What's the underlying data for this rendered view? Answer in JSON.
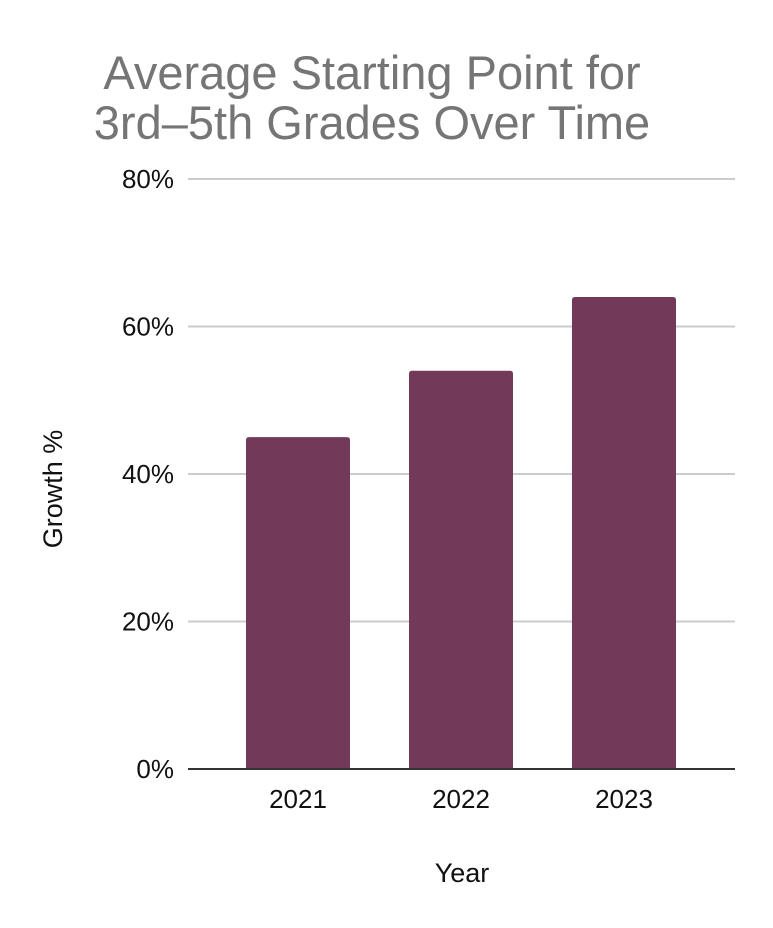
{
  "chart_data": {
    "type": "bar",
    "title_lines": [
      "Average Starting Point for",
      "3rd–5th Grades Over Time"
    ],
    "xlabel": "Year",
    "ylabel": "Growth %",
    "categories": [
      "2021",
      "2022",
      "2023"
    ],
    "values": [
      45,
      54,
      64
    ],
    "ylim": [
      0,
      80
    ],
    "y_ticks": [
      0,
      20,
      40,
      60,
      80
    ],
    "y_tick_labels": [
      "0%",
      "20%",
      "40%",
      "60%",
      "80%"
    ],
    "grid": true,
    "legend": "none",
    "bar_color": "#723a58"
  }
}
